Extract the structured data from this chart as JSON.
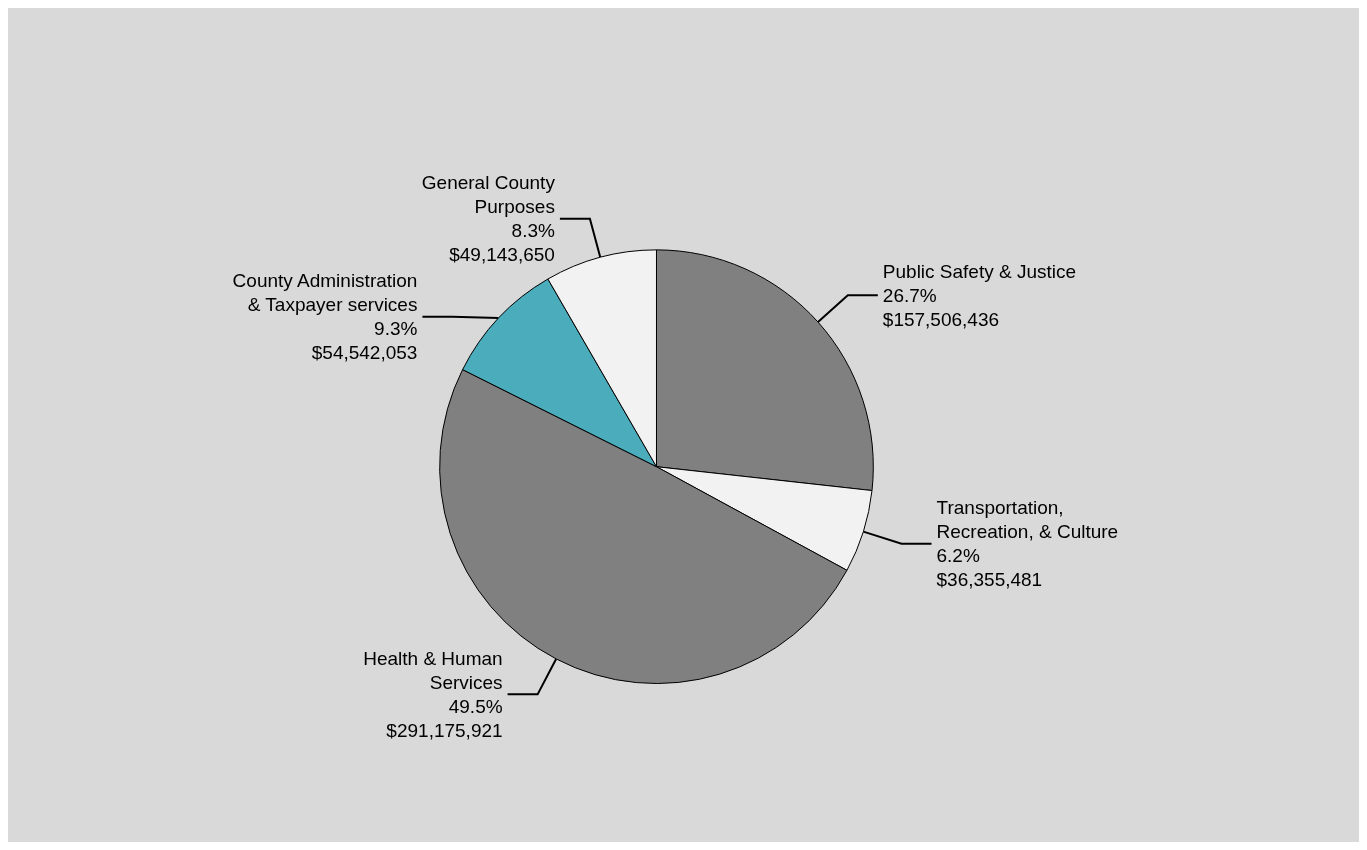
{
  "chart_data": {
    "type": "pie",
    "categories": [
      "Public Safety & Justice",
      "Transportation,\nRecreation, & Culture",
      "Health & Human\nServices",
      "County Administration\n& Taxpayer services",
      "General County\nPurposes"
    ],
    "values": [
      157506436,
      36355481,
      291175921,
      54542053,
      49143650
    ],
    "value_labels": [
      "26.7%\n$157,506,436",
      "6.2%\n$36,355,481",
      "49.5%\n$291,175,921",
      "9.3%\n$54,542,053",
      "8.3%\n$49,143,650"
    ],
    "colors": [
      "#808080",
      "#f2f2f2",
      "#808080",
      "#4bacbb",
      "#f2f2f2"
    ]
  }
}
